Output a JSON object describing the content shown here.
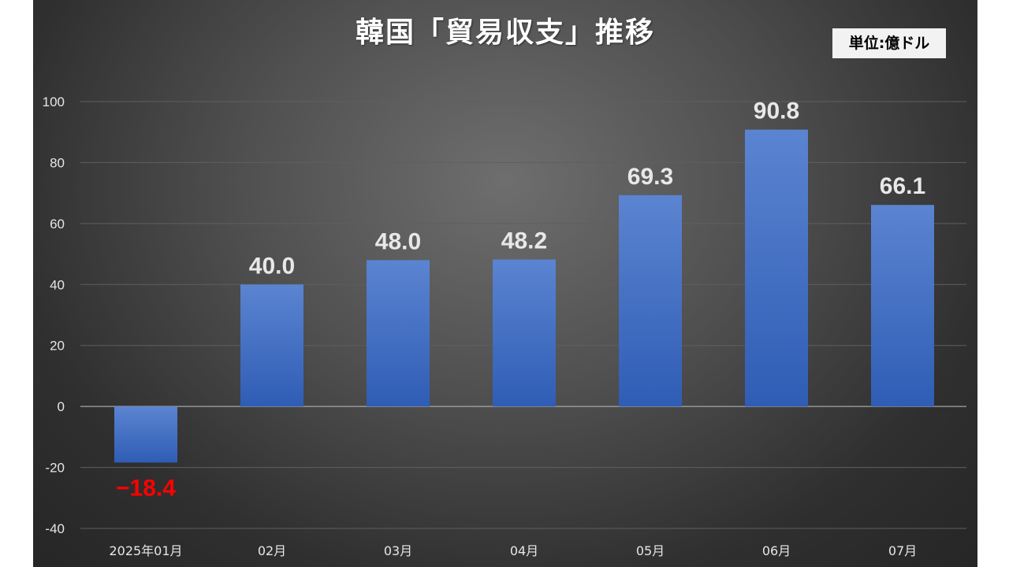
{
  "chart_data": {
    "type": "bar",
    "title": "韓国「貿易収支」推移",
    "unit_label": "単位:億ドル",
    "categories": [
      "2025年01月",
      "02月",
      "03月",
      "04月",
      "05月",
      "06月",
      "07月"
    ],
    "values": [
      -18.4,
      40.0,
      48.0,
      48.2,
      69.3,
      90.8,
      66.1
    ],
    "data_labels": [
      "−18.4",
      "40.0",
      "48.0",
      "48.2",
      "69.3",
      "90.8",
      "66.1"
    ],
    "ylim": [
      -40,
      100
    ],
    "yticks": [
      100,
      80,
      60,
      40,
      20,
      0,
      -20,
      -40
    ],
    "xlabel": "",
    "ylabel": "",
    "grid": true,
    "legend": "none"
  },
  "colors": {
    "bar_top": "#5b84d1",
    "bar_bottom": "#2f5db5",
    "positive_label": "#e8e8e8",
    "negative_label": "#ff0000",
    "gridline": "#5f5f5f",
    "zero_line": "#a6a6a6"
  }
}
